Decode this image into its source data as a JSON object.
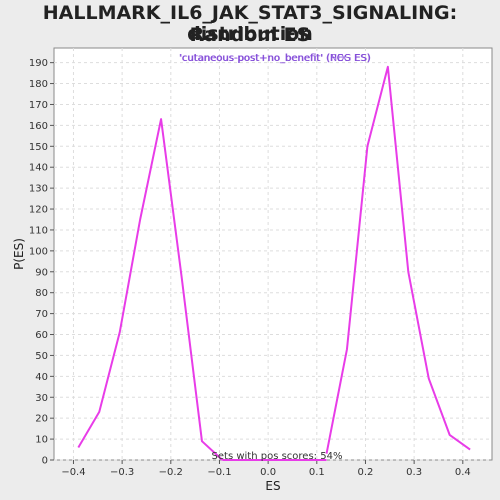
{
  "chart_data": {
    "type": "line",
    "title_lines": [
      "HALLMARK_IL6_JAK_STAT3_SIGNALING: Random ES",
      "distribution"
    ],
    "xlabel": "ES",
    "ylabel": "P(ES)",
    "xlim": [
      -0.44,
      0.46
    ],
    "ylim": [
      0,
      197
    ],
    "x_ticks": [
      -0.4,
      -0.3,
      -0.2,
      -0.1,
      0.0,
      0.1,
      0.2,
      0.3,
      0.4
    ],
    "x_tick_labels": [
      "−0.4",
      "−0.3",
      "−0.2",
      "−0.1",
      "0.0",
      "0.1",
      "0.2",
      "0.3",
      "0.4"
    ],
    "y_ticks": [
      0,
      10,
      20,
      30,
      40,
      50,
      60,
      70,
      80,
      90,
      100,
      110,
      120,
      130,
      140,
      150,
      160,
      170,
      180,
      190
    ],
    "grid": true,
    "series": [
      {
        "name": "'cutaneous-post+no_benefit' (NEG ES)",
        "legend_label": "'cutaneous-post+no_benefit' (NEG ES)",
        "color": "#e83ce8",
        "x": [
          -0.39,
          -0.347,
          -0.305,
          -0.263,
          -0.22,
          -0.178,
          -0.136,
          -0.094
        ],
        "y": [
          6,
          23,
          61,
          115,
          163,
          88,
          9,
          0
        ]
      },
      {
        "name": "'cutaneous-post+no_benefit' (POS ES)",
        "legend_label": "'cutaneous-post+no_benefit' (POS ES)",
        "color": "#e83ce8",
        "x": [
          0.12,
          0.162,
          0.204,
          0.246,
          0.288,
          0.33,
          0.373,
          0.415
        ],
        "y": [
          3,
          53,
          150,
          188,
          90,
          39,
          12,
          5
        ]
      }
    ],
    "baseline": {
      "x": [
        -0.094,
        0.12
      ],
      "y": [
        0,
        0
      ]
    },
    "legend_position": "top-center",
    "legend_color": "#7b3fd6",
    "annotation": "Sets with pos scores: 54%"
  }
}
